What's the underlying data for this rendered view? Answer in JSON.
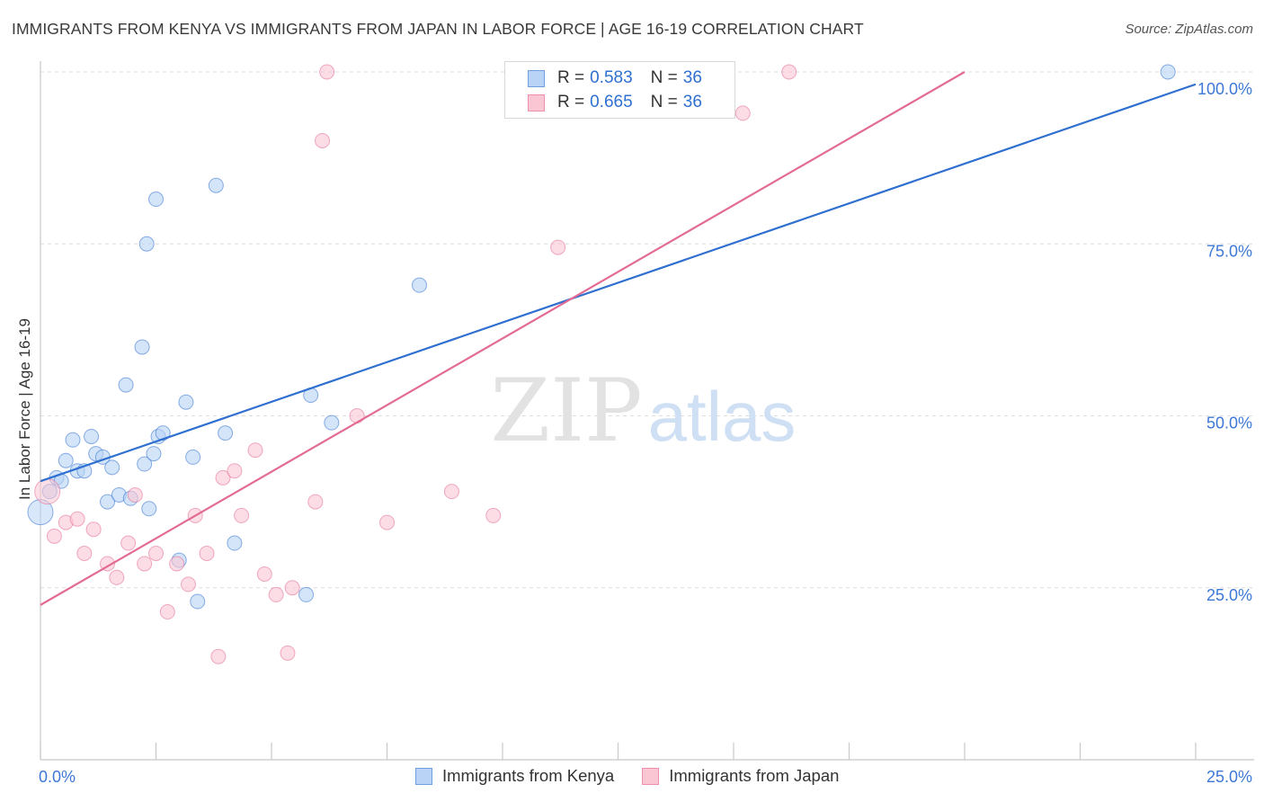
{
  "title": "IMMIGRANTS FROM KENYA VS IMMIGRANTS FROM JAPAN IN LABOR FORCE | AGE 16-19 CORRELATION CHART",
  "source": "Source: ZipAtlas.com",
  "watermark": {
    "zip": "ZIP",
    "atlas": "atlas"
  },
  "colors": {
    "kenya": "#2f6fd0",
    "japan": "#e26a93",
    "kenya_fill": "#b8d3f5",
    "japan_fill": "#fbc6d4",
    "grid": "#dcdcdc",
    "axis_label": "#3d78d6"
  },
  "legend": {
    "kenya": {
      "r_label": "R = ",
      "r_value": "0.583",
      "n_label": "N = ",
      "n_value": "36"
    },
    "japan": {
      "r_label": "R = ",
      "r_value": "0.665",
      "n_label": "N = ",
      "n_value": "36"
    }
  },
  "series_labels": {
    "kenya": "Immigrants from Kenya",
    "japan": "Immigrants from Japan"
  },
  "chart_data": {
    "type": "scatter",
    "xlabel": "",
    "ylabel": "In Labor Force | Age 16-19",
    "xlim": [
      0,
      25
    ],
    "ylim": [
      0,
      100
    ],
    "x_tick_labels": [
      {
        "value": 0,
        "label": "0.0%"
      },
      {
        "value": 25,
        "label": "25.0%"
      }
    ],
    "y_tick_labels": [
      {
        "value": 25,
        "label": "25.0%"
      },
      {
        "value": 50,
        "label": "50.0%"
      },
      {
        "value": 75,
        "label": "75.0%"
      },
      {
        "value": 100,
        "label": "100.0%"
      }
    ],
    "series": [
      {
        "name": "Immigrants from Kenya",
        "key": "kenya",
        "trend": {
          "x": [
            0,
            25
          ],
          "y": [
            40.5,
            98.2
          ]
        },
        "points": [
          {
            "x": 0.0,
            "y": 36.0,
            "big": true
          },
          {
            "x": 0.2,
            "y": 39.0
          },
          {
            "x": 0.35,
            "y": 41.0
          },
          {
            "x": 0.45,
            "y": 40.5
          },
          {
            "x": 0.55,
            "y": 43.5
          },
          {
            "x": 0.7,
            "y": 46.5
          },
          {
            "x": 0.8,
            "y": 42.0
          },
          {
            "x": 0.95,
            "y": 42.0
          },
          {
            "x": 1.1,
            "y": 47.0
          },
          {
            "x": 1.2,
            "y": 44.5
          },
          {
            "x": 1.35,
            "y": 44.0
          },
          {
            "x": 1.45,
            "y": 37.5
          },
          {
            "x": 1.55,
            "y": 42.5
          },
          {
            "x": 1.7,
            "y": 38.5
          },
          {
            "x": 1.85,
            "y": 54.5
          },
          {
            "x": 1.95,
            "y": 38.0
          },
          {
            "x": 2.2,
            "y": 60.0
          },
          {
            "x": 2.3,
            "y": 75.0
          },
          {
            "x": 2.25,
            "y": 43.0
          },
          {
            "x": 2.35,
            "y": 36.5
          },
          {
            "x": 2.5,
            "y": 81.5
          },
          {
            "x": 2.45,
            "y": 44.5
          },
          {
            "x": 2.55,
            "y": 47.0
          },
          {
            "x": 2.65,
            "y": 47.5
          },
          {
            "x": 3.0,
            "y": 29.0
          },
          {
            "x": 3.15,
            "y": 52.0
          },
          {
            "x": 3.3,
            "y": 44.0
          },
          {
            "x": 3.4,
            "y": 23.0
          },
          {
            "x": 3.8,
            "y": 83.5
          },
          {
            "x": 4.0,
            "y": 47.5
          },
          {
            "x": 4.2,
            "y": 31.5
          },
          {
            "x": 5.75,
            "y": 24.0
          },
          {
            "x": 5.85,
            "y": 53.0
          },
          {
            "x": 6.3,
            "y": 49.0
          },
          {
            "x": 8.2,
            "y": 69.0
          },
          {
            "x": 24.4,
            "y": 100.0
          }
        ]
      },
      {
        "name": "Immigrants from Japan",
        "key": "japan",
        "trend": {
          "x": [
            0,
            20
          ],
          "y": [
            22.5,
            100
          ]
        },
        "points": [
          {
            "x": 0.15,
            "y": 39.0,
            "big": true
          },
          {
            "x": 0.3,
            "y": 32.5
          },
          {
            "x": 0.55,
            "y": 34.5
          },
          {
            "x": 0.8,
            "y": 35.0
          },
          {
            "x": 0.95,
            "y": 30.0
          },
          {
            "x": 1.15,
            "y": 33.5
          },
          {
            "x": 1.45,
            "y": 28.5
          },
          {
            "x": 1.65,
            "y": 26.5
          },
          {
            "x": 1.9,
            "y": 31.5
          },
          {
            "x": 2.05,
            "y": 38.5
          },
          {
            "x": 2.25,
            "y": 28.5
          },
          {
            "x": 2.5,
            "y": 30.0
          },
          {
            "x": 2.75,
            "y": 21.5
          },
          {
            "x": 2.95,
            "y": 28.5
          },
          {
            "x": 3.2,
            "y": 25.5
          },
          {
            "x": 3.35,
            "y": 35.5
          },
          {
            "x": 3.6,
            "y": 30.0
          },
          {
            "x": 3.85,
            "y": 15.0
          },
          {
            "x": 3.95,
            "y": 41.0
          },
          {
            "x": 4.2,
            "y": 42.0
          },
          {
            "x": 4.35,
            "y": 35.5
          },
          {
            "x": 4.65,
            "y": 45.0
          },
          {
            "x": 4.85,
            "y": 27.0
          },
          {
            "x": 5.1,
            "y": 24.0
          },
          {
            "x": 5.35,
            "y": 15.5
          },
          {
            "x": 5.45,
            "y": 25.0
          },
          {
            "x": 5.95,
            "y": 37.5
          },
          {
            "x": 6.1,
            "y": 90.0
          },
          {
            "x": 6.2,
            "y": 100.0
          },
          {
            "x": 6.85,
            "y": 50.0
          },
          {
            "x": 7.5,
            "y": 34.5
          },
          {
            "x": 8.9,
            "y": 39.0
          },
          {
            "x": 9.8,
            "y": 35.5
          },
          {
            "x": 11.2,
            "y": 74.5
          },
          {
            "x": 15.2,
            "y": 94.0
          },
          {
            "x": 16.2,
            "y": 100.0
          }
        ]
      }
    ]
  }
}
